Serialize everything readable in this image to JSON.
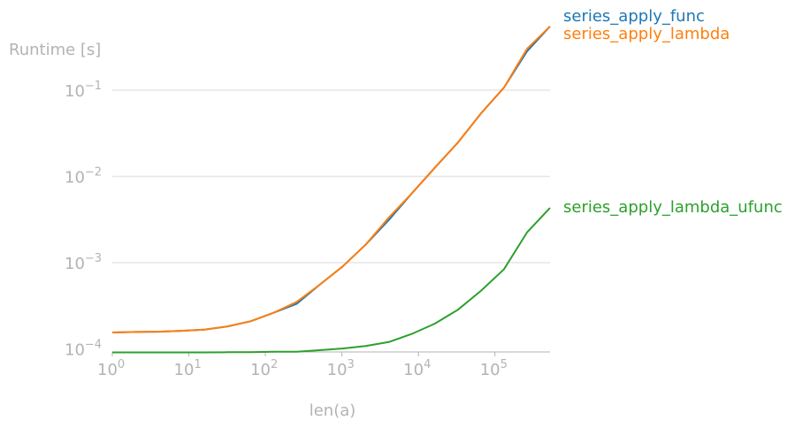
{
  "chart_data": {
    "type": "line",
    "title": "",
    "xlabel": "len(a)",
    "ylabel": "Runtime [s]",
    "xscale": "log",
    "yscale": "log",
    "xlim": [
      1,
      524288
    ],
    "ylim": [
      9e-05,
      0.5
    ],
    "grid": "horizontal",
    "legend": "right of plot, labels at series ends",
    "x_ticks": [
      {
        "base": "10",
        "exp": "0"
      },
      {
        "base": "10",
        "exp": "1"
      },
      {
        "base": "10",
        "exp": "2"
      },
      {
        "base": "10",
        "exp": "3"
      },
      {
        "base": "10",
        "exp": "4"
      },
      {
        "base": "10",
        "exp": "5"
      }
    ],
    "y_ticks": [
      {
        "base": "10",
        "exp": "−1"
      },
      {
        "base": "10",
        "exp": "−2"
      },
      {
        "base": "10",
        "exp": "−3"
      },
      {
        "base": "10",
        "exp": "−4"
      }
    ],
    "x": [
      1,
      2,
      4,
      8,
      16,
      32,
      64,
      128,
      256,
      512,
      1024,
      2048,
      4096,
      8192,
      16384,
      32768,
      65536,
      131072,
      262144,
      524288
    ],
    "series": [
      {
        "name": "series_apply_func",
        "color": "#1f77b4",
        "values": [
          0.000155,
          0.000157,
          0.000158,
          0.000162,
          0.000167,
          0.000182,
          0.000209,
          0.000262,
          0.000333,
          0.000554,
          0.000903,
          0.00162,
          0.00312,
          0.00636,
          0.0126,
          0.0247,
          0.0537,
          0.107,
          0.282,
          0.55
        ]
      },
      {
        "name": "series_apply_lambda",
        "color": "#ff7f0e",
        "values": [
          0.000155,
          0.000157,
          0.000158,
          0.000162,
          0.000167,
          0.000182,
          0.000209,
          0.000262,
          0.00035,
          0.000554,
          0.000903,
          0.00162,
          0.00333,
          0.00636,
          0.0126,
          0.0247,
          0.0537,
          0.107,
          0.302,
          0.55
        ]
      },
      {
        "name": "series_apply_lambda_ufunc",
        "color": "#2ca02c",
        "values": [
          9.1e-05,
          9.1e-05,
          9.1e-05,
          9.1e-05,
          9.1e-05,
          9.14e-05,
          9.14e-05,
          9.27e-05,
          9.27e-05,
          9.66e-05,
          0.000101,
          0.000108,
          0.00012,
          0.000149,
          0.000196,
          0.000284,
          0.000471,
          0.000836,
          0.00224,
          0.00432
        ]
      }
    ]
  }
}
